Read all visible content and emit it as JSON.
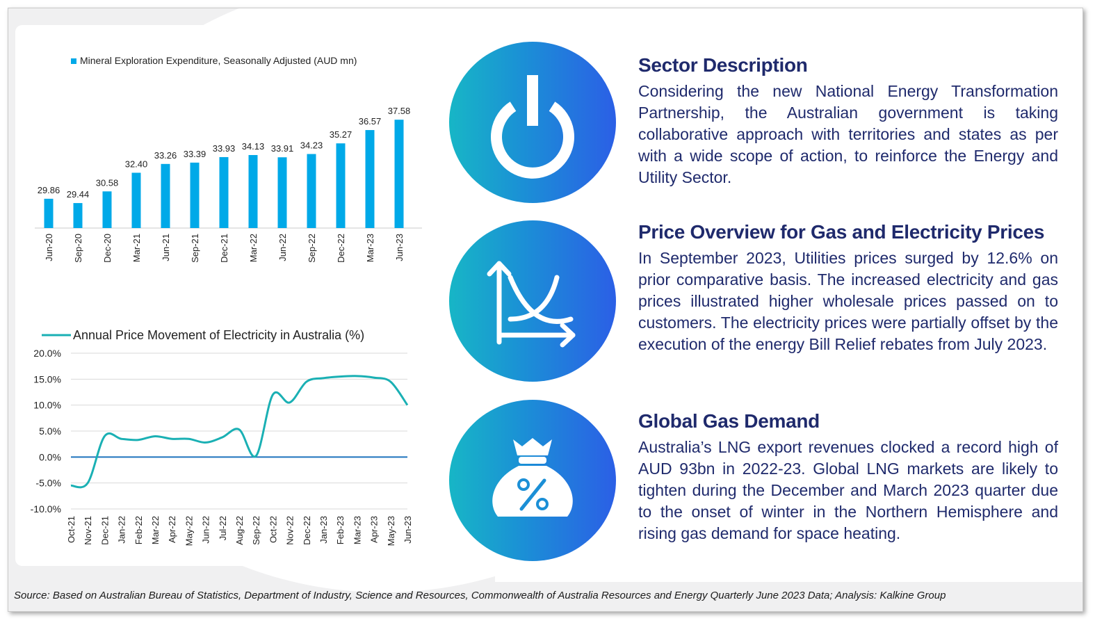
{
  "chart_data": [
    {
      "type": "bar",
      "legend": "Mineral Exploration Expenditure, Seasonally Adjusted (AUD mn)",
      "categories": [
        "Jun-20",
        "Sep-20",
        "Dec-20",
        "Mar-21",
        "Jun-21",
        "Sep-21",
        "Dec-21",
        "Mar-22",
        "Jun-22",
        "Sep-22",
        "Dec-22",
        "Mar-23",
        "Jun-23"
      ],
      "values": [
        29.86,
        29.44,
        30.58,
        32.4,
        33.26,
        33.39,
        33.93,
        34.13,
        33.91,
        34.23,
        35.27,
        36.57,
        37.58
      ],
      "labels": [
        "29.86",
        "29.44",
        "30.58",
        "32.40",
        "33.26",
        "33.39",
        "33.93",
        "34.13",
        "33.91",
        "34.23",
        "35.27",
        "36.57",
        "37.58"
      ],
      "color": "#00a9e8",
      "ylim": [
        27,
        38
      ]
    },
    {
      "type": "line",
      "legend": "Annual Price Movement of Electricity in Australia (%)",
      "x": [
        "Oct-21",
        "Nov-21",
        "Dec-21",
        "Jan-22",
        "Feb-22",
        "Mar-22",
        "Apr-22",
        "May-22",
        "Jun-22",
        "Jul-22",
        "Aug-22",
        "Sep-22",
        "Oct-22",
        "Nov-22",
        "Dec-22",
        "Jan-23",
        "Feb-23",
        "Mar-23",
        "Apr-23",
        "May-23",
        "Jun-23"
      ],
      "values": [
        -5.5,
        -5.0,
        4.0,
        3.5,
        3.3,
        4.0,
        3.5,
        3.5,
        2.8,
        3.8,
        5.3,
        0.2,
        12.0,
        10.5,
        14.5,
        15.2,
        15.5,
        15.6,
        15.3,
        14.5,
        10.0
      ],
      "yticks": [
        "20.0%",
        "15.0%",
        "10.0%",
        "5.0%",
        "0.0%",
        "-5.0%",
        "-10.0%"
      ],
      "ylim": [
        -10,
        20
      ],
      "color": "#1ab0b4",
      "zero_line_color": "#1e73be",
      "grid": true
    }
  ],
  "sections": [
    {
      "icon": "power-icon",
      "title": "Sector Description",
      "text": "Considering the new National Energy Transformation Partnership, the Australian government is taking collaborative approach with territories and states as per with a wide scope of action, to reinforce the Energy and Utility Sector."
    },
    {
      "icon": "price-chart-icon",
      "title": "Price Overview for Gas and Electricity Prices",
      "text": "In September 2023, Utilities prices surged by 12.6% on prior comparative basis. The increased electricity and gas prices illustrated higher wholesale prices passed on to customers. The electricity prices were partially offset by the execution of the energy Bill Relief rebates from July 2023."
    },
    {
      "icon": "money-bag-percent-icon",
      "title": "Global Gas Demand",
      "text": "Australia’s LNG export revenues clocked a record high of AUD 93bn in 2022-23. Global LNG markets are likely to tighten during the December and March 2023 quarter due to the onset of winter in the Northern Hemisphere and rising gas demand for space heating."
    }
  ],
  "footer": "Source: Based on Australian Bureau of Statistics, Department of Industry, Science and Resources, Commonwealth of Australia Resources and Energy Quarterly June 2023 Data; Analysis: Kalkine Group",
  "colors": {
    "heading": "#1f2a6c",
    "circle_start": "#17b6c6",
    "circle_end": "#2b5fe6"
  }
}
